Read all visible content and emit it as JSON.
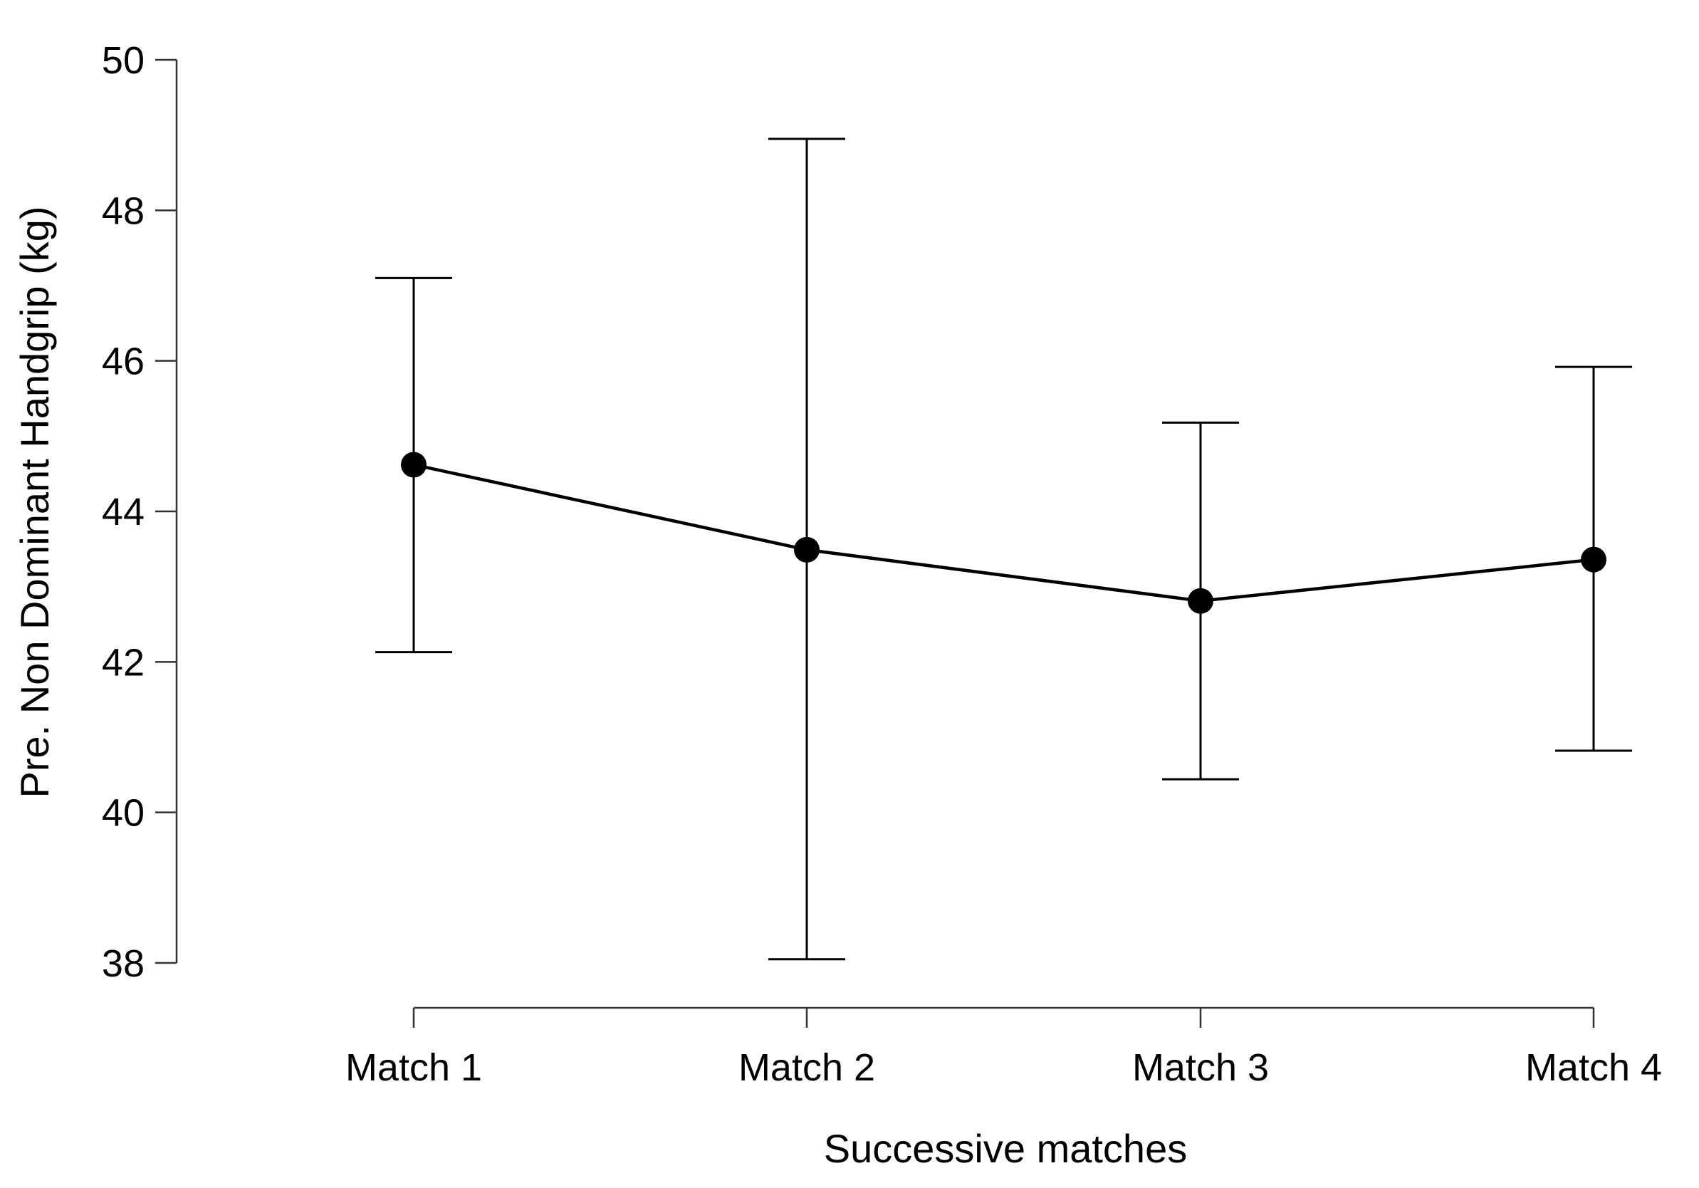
{
  "chart_data": {
    "type": "line",
    "xlabel": "Successive matches",
    "ylabel": "Pre. Non Dominant Handgrip (kg)",
    "categories": [
      "Match 1",
      "Match 2",
      "Match 3",
      "Match 4"
    ],
    "series": [
      {
        "values": [
          44.62,
          43.49,
          42.81,
          43.36
        ],
        "error_low": [
          42.13,
          38.05,
          40.44,
          40.82
        ],
        "error_high": [
          47.1,
          48.95,
          45.18,
          45.92
        ]
      }
    ],
    "ylim": [
      38,
      50
    ],
    "yticks": [
      38,
      40,
      42,
      44,
      46,
      48,
      50
    ],
    "yticklabels": [
      "38",
      "40",
      "42",
      "44",
      "46",
      "48",
      "50"
    ],
    "grid": false,
    "legend": "none",
    "colors": {
      "line": "#000000",
      "axis": "#333333"
    }
  }
}
